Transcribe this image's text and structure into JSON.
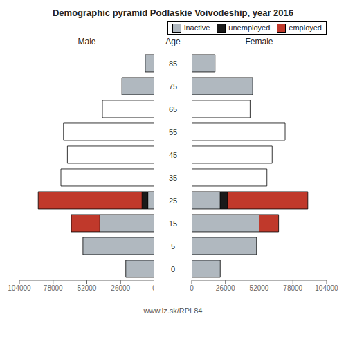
{
  "chart_data": [
    {
      "type": "bar",
      "orientation": "horizontal",
      "stacked": true,
      "title": "Demographic pyramid Podlaskie Voivodeship, year 2016",
      "subtitle": "Male",
      "ylabel": "Age",
      "categories": [
        "0",
        "5",
        "15",
        "25",
        "35",
        "45",
        "55",
        "65",
        "75",
        "85"
      ],
      "series": [
        {
          "name": "inactive",
          "color": "#b0b8bf",
          "colors": [
            "#b0b8bf",
            "#b0b8bf",
            "#b0b8bf",
            "#b0b8bf",
            "#ffffff",
            "#ffffff",
            "#ffffff",
            "#ffffff",
            "#b0b8bf",
            "#b0b8bf"
          ],
          "values": [
            22000,
            55000,
            42000,
            5000,
            72000,
            67000,
            70000,
            40000,
            25000,
            7000
          ]
        },
        {
          "name": "unemployed",
          "color": "#1a1a1a",
          "values": [
            0,
            0,
            0,
            4500,
            0,
            0,
            0,
            0,
            0,
            0
          ]
        },
        {
          "name": "employed",
          "color": "#c0392b",
          "values": [
            0,
            0,
            22000,
            80000,
            0,
            0,
            0,
            0,
            0,
            0
          ]
        }
      ],
      "xlim": [
        104000,
        0
      ],
      "xticks": [
        104000,
        78000,
        52000,
        26000,
        0
      ],
      "grid": false
    },
    {
      "type": "bar",
      "orientation": "horizontal",
      "stacked": true,
      "subtitle": "Female",
      "annotations": [
        "www.iz.sk/RPL84"
      ],
      "legend": "upper right",
      "categories": [
        "0",
        "5",
        "15",
        "25",
        "35",
        "45",
        "55",
        "65",
        "75",
        "85"
      ],
      "series": [
        {
          "name": "inactive",
          "color": "#b0b8bf",
          "colors": [
            "#b0b8bf",
            "#b0b8bf",
            "#b0b8bf",
            "#b0b8bf",
            "#ffffff",
            "#ffffff",
            "#ffffff",
            "#ffffff",
            "#b0b8bf",
            "#b0b8bf"
          ],
          "values": [
            22000,
            50000,
            52000,
            22000,
            58000,
            62000,
            72000,
            45000,
            47000,
            18000
          ]
        },
        {
          "name": "unemployed",
          "color": "#1a1a1a",
          "values": [
            0,
            0,
            0,
            5500,
            0,
            0,
            0,
            0,
            0,
            0
          ]
        },
        {
          "name": "employed",
          "color": "#c0392b",
          "values": [
            0,
            0,
            15000,
            62000,
            0,
            0,
            0,
            0,
            0,
            0
          ]
        }
      ],
      "xlim": [
        0,
        104000
      ],
      "xticks": [
        0,
        26000,
        52000,
        78000,
        104000
      ],
      "grid": false
    }
  ]
}
